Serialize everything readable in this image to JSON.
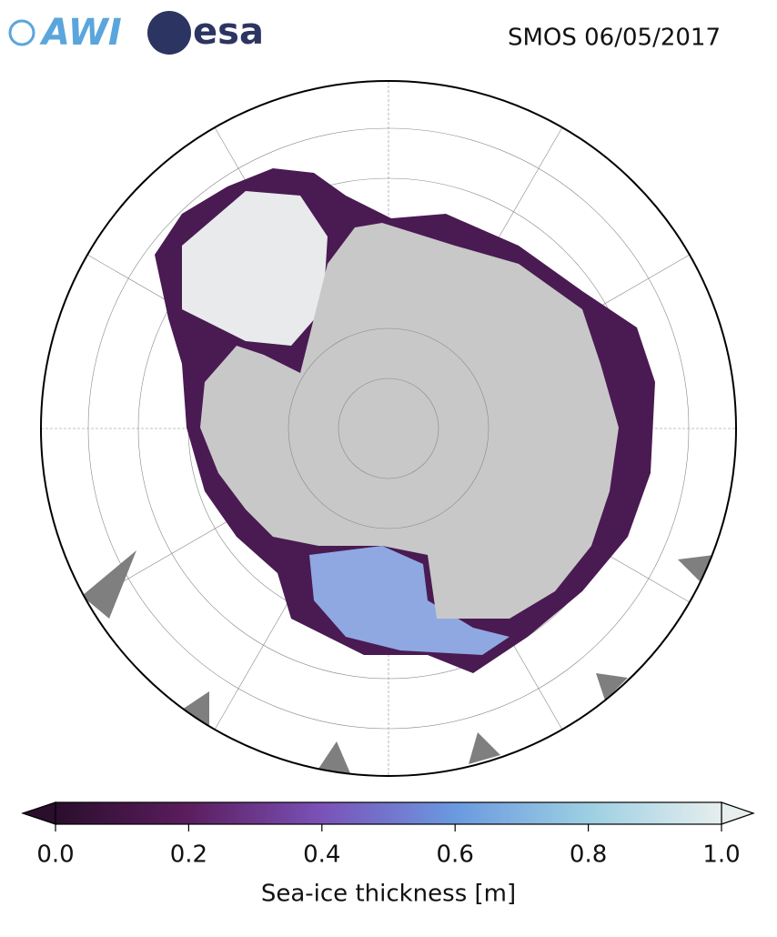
{
  "header": {
    "logos": [
      "AWI",
      "esa"
    ],
    "title": "SMOS 06/05/2017"
  },
  "colorbar": {
    "label": "Sea-ice thickness [m]",
    "lim": [
      0,
      1
    ],
    "ticks": [
      {
        "value": 0,
        "label": "0.0"
      },
      {
        "value": 0.2,
        "label": "0.2"
      },
      {
        "value": 0.4,
        "label": "0.4"
      },
      {
        "value": 0.6,
        "label": "0.6"
      },
      {
        "value": 0.8,
        "label": "0.8"
      },
      {
        "value": 1,
        "label": "1.0"
      }
    ],
    "colors": [
      "#2a0e2c",
      "#5b1d5e",
      "#7a52b8",
      "#6b99e0",
      "#9ccfe2",
      "#e6eeee"
    ]
  }
}
